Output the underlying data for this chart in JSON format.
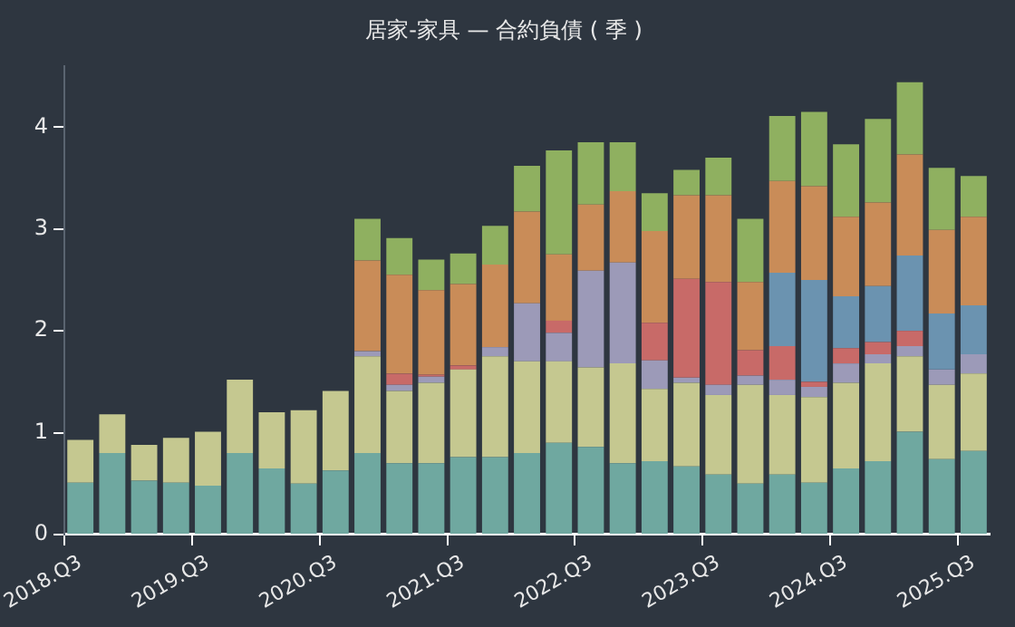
{
  "chart_data": {
    "type": "bar",
    "title": "居家-家具 — 合約負債 ( 季 )",
    "stacked": true,
    "grid": false,
    "legend": false,
    "categories": [
      "2018.Q3",
      null,
      null,
      null,
      "2019.Q3",
      null,
      null,
      null,
      "2020.Q3",
      null,
      null,
      null,
      "2021.Q3",
      null,
      null,
      null,
      "2022.Q3",
      null,
      null,
      null,
      "2023.Q3",
      null,
      null,
      null,
      "2024.Q3",
      null,
      null,
      null,
      "2025.Q3"
    ],
    "ylim": [
      0,
      4.6
    ],
    "yticks": [
      0,
      1,
      2,
      3,
      4
    ],
    "series": [
      {
        "color": "#6fa8a0",
        "values": [
          0.51,
          0.8,
          0.53,
          0.51,
          0.48,
          0.8,
          0.65,
          0.5,
          0.63,
          0.8,
          0.7,
          0.7,
          0.76,
          0.76,
          0.8,
          0.9,
          0.86,
          0.7,
          0.72,
          0.67,
          0.59,
          0.5,
          0.59,
          0.51,
          0.65,
          0.72,
          1.01,
          0.74,
          0.82
        ]
      },
      {
        "color": "#c5c890",
        "values": [
          0.42,
          0.38,
          0.35,
          0.44,
          0.53,
          0.72,
          0.55,
          0.72,
          0.78,
          0.95,
          0.71,
          0.79,
          0.86,
          0.99,
          0.9,
          0.8,
          0.78,
          0.98,
          0.71,
          0.82,
          0.78,
          0.97,
          0.78,
          0.84,
          0.84,
          0.96,
          0.74,
          0.73,
          0.76
        ]
      },
      {
        "color": "#9c9ab8",
        "values": [
          null,
          null,
          null,
          null,
          null,
          null,
          null,
          null,
          null,
          0.05,
          0.06,
          0.06,
          null,
          0.09,
          0.57,
          0.28,
          0.95,
          0.99,
          0.28,
          0.05,
          0.1,
          0.09,
          0.15,
          0.1,
          0.19,
          0.09,
          0.1,
          0.15,
          0.19
        ]
      },
      {
        "color": "#c86a68",
        "values": [
          null,
          null,
          null,
          null,
          null,
          null,
          null,
          null,
          null,
          null,
          0.11,
          0.02,
          0.04,
          null,
          null,
          0.12,
          null,
          null,
          0.37,
          0.97,
          1.01,
          0.25,
          0.33,
          0.05,
          0.15,
          0.12,
          0.15,
          null,
          null
        ]
      },
      {
        "color": "#6b93b0",
        "values": [
          null,
          null,
          null,
          null,
          null,
          null,
          null,
          null,
          null,
          null,
          null,
          null,
          null,
          null,
          null,
          null,
          null,
          null,
          null,
          null,
          null,
          null,
          0.72,
          1.0,
          0.51,
          0.55,
          0.74,
          0.55,
          0.48
        ]
      },
      {
        "color": "#c98c58",
        "values": [
          null,
          null,
          null,
          null,
          null,
          null,
          null,
          null,
          null,
          0.89,
          0.97,
          0.83,
          0.8,
          0.81,
          0.9,
          0.65,
          0.65,
          0.7,
          0.9,
          0.82,
          0.85,
          0.67,
          0.9,
          0.92,
          0.78,
          0.82,
          0.99,
          0.82,
          0.87
        ]
      },
      {
        "color": "#8fb060",
        "values": [
          null,
          null,
          null,
          null,
          null,
          null,
          null,
          null,
          null,
          0.41,
          0.36,
          0.3,
          0.3,
          0.38,
          0.45,
          1.02,
          0.61,
          0.48,
          0.37,
          0.25,
          0.37,
          0.62,
          0.64,
          0.73,
          0.71,
          0.82,
          0.71,
          0.61,
          0.4
        ]
      }
    ]
  }
}
